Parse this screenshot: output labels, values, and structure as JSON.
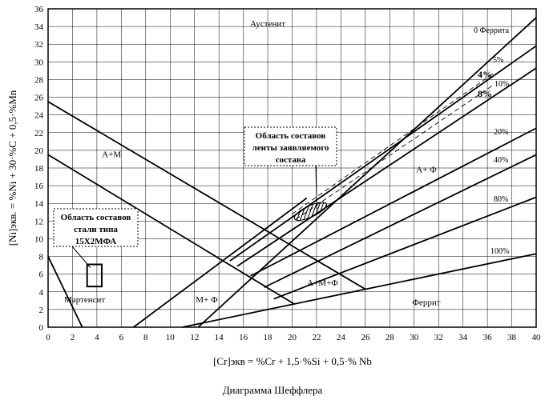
{
  "chart_data": {
    "type": "line",
    "title": "Диаграмма Шеффлера",
    "xlabel": "[Cr]экв = %Cr + 1,5·%Si + 0,5·% Nb",
    "ylabel": "[Ni]экв. = %Ni + 30·%C + 0,5·%Mn",
    "xlim": [
      0,
      40
    ],
    "ylim": [
      0,
      36
    ],
    "x_ticks": [
      "0",
      "2",
      "4",
      "6",
      "8",
      "10",
      "12",
      "14",
      "16",
      "18",
      "20",
      "22",
      "24",
      "26",
      "28",
      "30",
      "32",
      "34",
      "36",
      "38",
      "40"
    ],
    "y_ticks": [
      "0",
      "2",
      "4",
      "6",
      "8",
      "10",
      "12",
      "14",
      "16",
      "18",
      "20",
      "22",
      "24",
      "26",
      "28",
      "30",
      "32",
      "34",
      "36"
    ],
    "grid": true,
    "ferrite_lines": [
      {
        "label": "0 Феррита",
        "points": [
          [
            12.3,
            0
          ],
          [
            40,
            35
          ]
        ]
      },
      {
        "label": "5%",
        "points": [
          [
            14.9,
            7.5
          ],
          [
            40,
            31.8
          ]
        ]
      },
      {
        "label": "4%",
        "points": [
          [
            20,
            12.8
          ],
          [
            36.5,
            28.7
          ]
        ]
      },
      {
        "label": "8%",
        "points": [
          [
            20.3,
            12.2
          ],
          [
            36.5,
            27.4
          ]
        ]
      },
      {
        "label": "10%",
        "points": [
          [
            15.5,
            6.9
          ],
          [
            40,
            29.3
          ]
        ]
      },
      {
        "label": "20%",
        "points": [
          [
            16.6,
            5.8
          ],
          [
            40,
            22.5
          ]
        ]
      },
      {
        "label": "40%",
        "points": [
          [
            17.7,
            4.5
          ],
          [
            40,
            19.5
          ]
        ]
      },
      {
        "label": "80%",
        "points": [
          [
            18.5,
            3.2
          ],
          [
            40,
            14.7
          ]
        ]
      },
      {
        "label": "100%",
        "points": [
          [
            11,
            0
          ],
          [
            40,
            8.3
          ]
        ]
      }
    ],
    "boundary_lines": [
      {
        "points": [
          [
            0,
            25.5
          ],
          [
            26,
            4.3
          ]
        ]
      },
      {
        "points": [
          [
            0,
            19.5
          ],
          [
            20.2,
            2.6
          ]
        ]
      },
      {
        "points": [
          [
            0,
            8
          ],
          [
            2.8,
            0
          ]
        ]
      },
      {
        "points": [
          [
            7,
            0
          ],
          [
            21.2,
            14.6
          ]
        ]
      }
    ],
    "regions": [
      {
        "label": "Аустенит",
        "x": 18,
        "y": 34
      },
      {
        "label": "А+М",
        "x": 5.2,
        "y": 19.2
      },
      {
        "label": "А+ Ф",
        "x": 31,
        "y": 17.5
      },
      {
        "label": "А+М+Ф",
        "x": 22.5,
        "y": 4.7
      },
      {
        "label": "Мартенсит",
        "x": 3,
        "y": 2.8
      },
      {
        "label": "М+ Ф",
        "x": 13,
        "y": 2.8
      },
      {
        "label": "Феррит",
        "x": 31,
        "y": 2.5
      }
    ],
    "annotations": [
      {
        "lines": [
          "Область составов",
          "ленты заявляемого",
          "состава"
        ],
        "target": {
          "type": "hatched_ellipse",
          "center": [
            21.5,
            13.1
          ]
        }
      },
      {
        "lines": [
          "Область составов",
          "стали типа",
          "15Х2МФА"
        ],
        "target": {
          "type": "rectangle",
          "x_range": [
            3.2,
            4.4
          ],
          "y_range": [
            4.6,
            7.1
          ]
        }
      }
    ]
  }
}
